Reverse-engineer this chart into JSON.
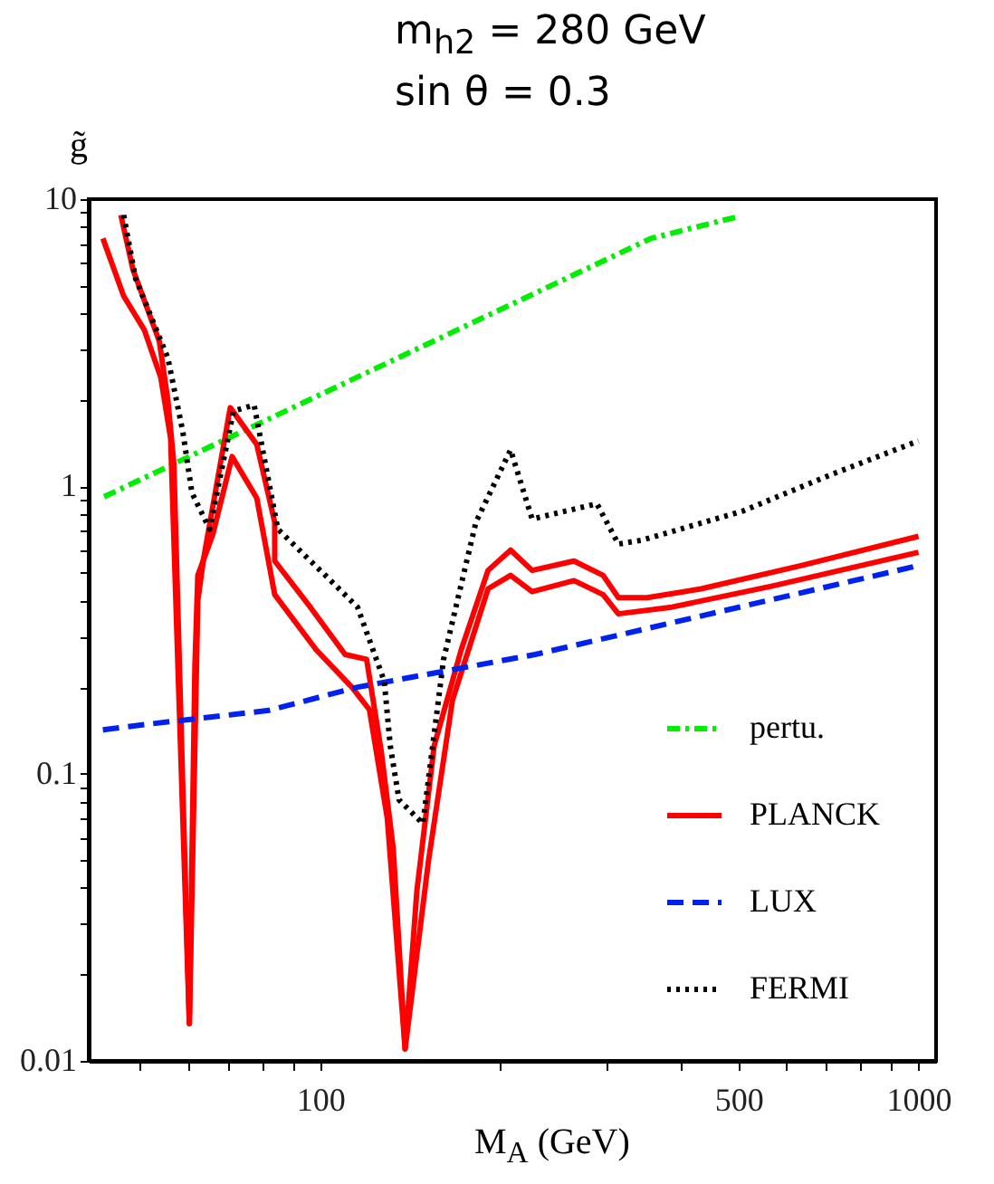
{
  "chart_data": {
    "type": "line",
    "title": "m$_{h2}$ = 280 GeV",
    "subtitle": "sin θ = 0.3",
    "xlabel": "M$_{A}$  (GeV)",
    "ylabel": "g̃",
    "log": "xy",
    "grid": false,
    "legend": "bottom right",
    "xlim": [
      41,
      1070
    ],
    "ylim": [
      0.01,
      10
    ],
    "xticks": [
      {
        "value": 50,
        "label": null
      },
      {
        "value": 60,
        "label": null
      },
      {
        "value": 70,
        "label": null
      },
      {
        "value": 80,
        "label": null
      },
      {
        "value": 90,
        "label": null
      },
      100,
      {
        "value": 200,
        "label": null
      },
      {
        "value": 300,
        "label": null
      },
      {
        "value": 400,
        "label": null
      },
      500,
      {
        "value": 600,
        "label": null
      },
      {
        "value": 700,
        "label": null
      },
      {
        "value": 800,
        "label": null
      },
      {
        "value": 900,
        "label": null
      },
      1000
    ],
    "yticks": [
      0.01,
      {
        "value": 0.02,
        "label": null
      },
      {
        "value": 0.03,
        "label": null
      },
      {
        "value": 0.04,
        "label": null
      },
      {
        "value": 0.05,
        "label": null
      },
      {
        "value": 0.06,
        "label": null
      },
      {
        "value": 0.07,
        "label": null
      },
      {
        "value": 0.08,
        "label": null
      },
      {
        "value": 0.09,
        "label": null
      },
      0.1,
      {
        "value": 0.2,
        "label": null
      },
      {
        "value": 0.3,
        "label": null
      },
      {
        "value": 0.4,
        "label": null
      },
      {
        "value": 0.5,
        "label": null
      },
      {
        "value": 0.6,
        "label": null
      },
      {
        "value": 0.7,
        "label": null
      },
      {
        "value": 0.8,
        "label": null
      },
      {
        "value": 0.9,
        "label": null
      },
      1,
      {
        "value": 2,
        "label": null
      },
      {
        "value": 3,
        "label": null
      },
      {
        "value": 4,
        "label": null
      },
      {
        "value": 5,
        "label": null
      },
      {
        "value": 6,
        "label": null
      },
      {
        "value": 7,
        "label": null
      },
      {
        "value": 8,
        "label": null
      },
      {
        "value": 9,
        "label": null
      },
      10
    ],
    "series": [
      {
        "name": "pertu.",
        "color": "#00ee00",
        "line_style": "dashdot",
        "x": [
          43.5,
          357,
          500
        ],
        "values": [
          0.92,
          7.3,
          8.7
        ]
      },
      {
        "name": "PLANCK",
        "color": "#ff0000",
        "line_style": "solid",
        "x": [
          46.4,
          48.6,
          53.8,
          55.6,
          56.9,
          60.4,
          62.4,
          63.8,
          70.7,
          78.3,
          83.9,
          83.9,
          96.2,
          110,
          119.5,
          126.4,
          132.4,
          138.6,
          145,
          155,
          172,
          190.7,
          208,
          226,
          265.5,
          297,
          315,
          352,
          433,
          636,
          1000
        ],
        "values": [
          8.8,
          5.7,
          3.2,
          2.0,
          1.2,
          0.0135,
          0.4,
          0.56,
          1.88,
          1.4,
          0.75,
          0.55,
          0.38,
          0.26,
          0.25,
          0.12,
          0.055,
          0.011,
          0.039,
          0.125,
          0.27,
          0.51,
          0.6,
          0.51,
          0.55,
          0.49,
          0.41,
          0.41,
          0.44,
          0.53,
          0.67
        ]
      },
      {
        "color": "#ff0000",
        "line_style": "solid",
        "x": [
          43.3,
          46.9,
          50.8,
          54.1,
          56.2,
          60.4,
          61.7,
          62.4,
          66.1,
          71.2,
          78.3,
          83.9,
          98.4,
          112.9,
          120.8,
          129.4,
          138.6,
          151.7,
          166.3,
          190.7,
          208,
          226,
          265.5,
          297,
          315,
          387,
          570,
          1000
        ],
        "values": [
          7.3,
          4.6,
          3.5,
          2.4,
          1.47,
          0.0135,
          0.235,
          0.49,
          0.68,
          1.27,
          0.91,
          0.42,
          0.27,
          0.2,
          0.167,
          0.07,
          0.011,
          0.05,
          0.18,
          0.44,
          0.49,
          0.43,
          0.47,
          0.42,
          0.36,
          0.38,
          0.45,
          0.59
        ]
      },
      {
        "name": "LUX",
        "color": "#0022ee",
        "line_style": "dashed",
        "x": [
          43.3,
          52,
          82,
          115.4,
          228.7,
          1000
        ],
        "values": [
          0.142,
          0.149,
          0.166,
          0.2,
          0.26,
          0.53
        ]
      },
      {
        "name": "FERMI",
        "color": "#000000",
        "line_style": "dotted",
        "x": [
          46.9,
          49.1,
          55.6,
          58.9,
          61,
          65.3,
          71.6,
          77.5,
          84.9,
          103,
          115.4,
          127.9,
          130.9,
          135.4,
          148.4,
          160.7,
          182,
          208,
          226,
          290,
          315,
          345,
          508,
          715,
          1000
        ],
        "values": [
          8.8,
          5.3,
          2.8,
          1.55,
          0.95,
          0.71,
          1.83,
          1.92,
          0.71,
          0.48,
          0.38,
          0.21,
          0.125,
          0.081,
          0.067,
          0.25,
          0.75,
          1.34,
          0.77,
          0.87,
          0.63,
          0.65,
          0.82,
          1.1,
          1.44
        ]
      }
    ]
  }
}
